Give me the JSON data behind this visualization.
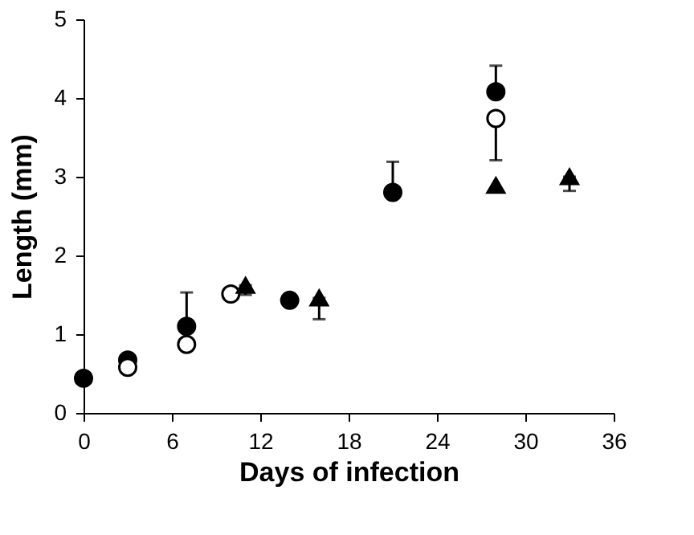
{
  "chart_data": {
    "type": "scatter",
    "xlabel": "Days of infection",
    "ylabel": "Length (mm)",
    "xlim": [
      0,
      36
    ],
    "xticks": [
      0,
      6,
      12,
      18,
      24,
      30,
      36
    ],
    "ylim": [
      0,
      5
    ],
    "yticks": [
      0,
      1,
      2,
      3,
      4,
      5
    ],
    "grid": false,
    "series": [
      {
        "color": "#000000",
        "marker": "circle",
        "x": [
          0,
          3,
          7,
          14,
          21,
          28
        ],
        "values": [
          0.44,
          0.67,
          1.1,
          1.43,
          2.8,
          4.08
        ],
        "errors": [
          null,
          null,
          [
            1.1,
            1.53
          ],
          null,
          [
            2.8,
            3.19
          ],
          [
            4.08,
            4.41
          ]
        ]
      },
      {
        "color": "#ffffff",
        "marker": "circle",
        "x": [
          3,
          7,
          10,
          28
        ],
        "values": [
          0.58,
          0.87,
          1.51,
          3.74
        ],
        "errors": [
          null,
          null,
          null,
          [
            3.21,
            3.74
          ]
        ]
      },
      {
        "color": "#000000",
        "marker": "triangle",
        "x": [
          11,
          16,
          28,
          33
        ],
        "values": [
          1.62,
          1.46,
          2.89,
          3.0
        ],
        "errors": [
          [
            1.5,
            1.62
          ],
          [
            1.19,
            1.46
          ],
          null,
          [
            2.82,
            3.0
          ]
        ]
      }
    ]
  }
}
